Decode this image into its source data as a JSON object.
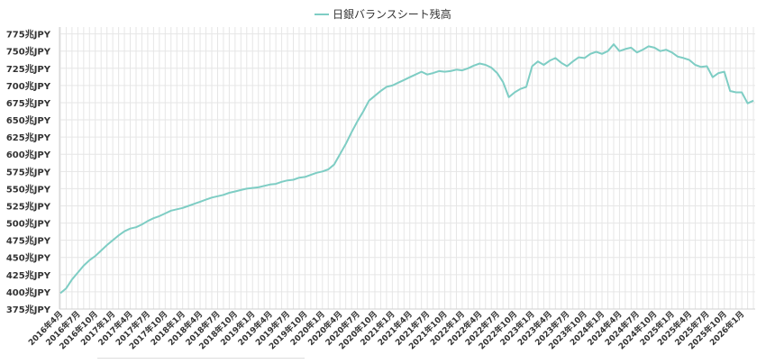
{
  "chart_data": {
    "type": "line",
    "title": "",
    "xlabel": "",
    "ylabel": "",
    "unit_suffix": "兆JPY",
    "ylim": [
      375,
      785
    ],
    "yticks": [
      375,
      400,
      425,
      450,
      475,
      500,
      525,
      550,
      575,
      600,
      625,
      650,
      675,
      700,
      725,
      750,
      775
    ],
    "ytick_labels": [
      "375兆JPY",
      "400兆JPY",
      "425兆JPY",
      "450兆JPY",
      "475兆JPY",
      "500兆JPY",
      "525兆JPY",
      "550兆JPY",
      "575兆JPY",
      "600兆JPY",
      "625兆JPY",
      "650兆JPY",
      "675兆JPY",
      "700兆JPY",
      "725兆JPY",
      "750兆JPY",
      "775兆JPY"
    ],
    "xlim": [
      "2016-04",
      "2026-03"
    ],
    "xtick_labels": [
      "2016年4月",
      "2016年7月",
      "2016年10月",
      "2017年1月",
      "2017年4月",
      "2017年7月",
      "2017年10月",
      "2018年1月",
      "2018年4月",
      "2018年7月",
      "2018年10月",
      "2019年1月",
      "2019年4月",
      "2019年7月",
      "2019年10月",
      "2020年1月",
      "2020年4月",
      "2020年7月",
      "2020年10月",
      "2021年1月",
      "2021年4月",
      "2021年7月",
      "2021年10月",
      "2022年1月",
      "2022年4月",
      "2022年7月",
      "2022年10月",
      "2023年1月",
      "2023年4月",
      "2023年7月",
      "2023年10月",
      "2024年1月",
      "2024年4月",
      "2024年7月",
      "2024年10月",
      "2025年1月",
      "2025年4月",
      "2025年7月",
      "2025年10月",
      "2026年1月"
    ],
    "grid": true,
    "legend_position": "top-center",
    "series": [
      {
        "name": "日銀バランスシート残高",
        "color": "#7ecdc4",
        "points": [
          [
            "2016-04",
            398
          ],
          [
            "2016-05",
            405
          ],
          [
            "2016-06",
            418
          ],
          [
            "2016-07",
            428
          ],
          [
            "2016-08",
            438
          ],
          [
            "2016-09",
            446
          ],
          [
            "2016-10",
            452
          ],
          [
            "2016-11",
            460
          ],
          [
            "2016-12",
            468
          ],
          [
            "2017-01",
            475
          ],
          [
            "2017-02",
            482
          ],
          [
            "2017-03",
            488
          ],
          [
            "2017-04",
            492
          ],
          [
            "2017-05",
            494
          ],
          [
            "2017-06",
            498
          ],
          [
            "2017-07",
            503
          ],
          [
            "2017-08",
            507
          ],
          [
            "2017-09",
            510
          ],
          [
            "2017-10",
            514
          ],
          [
            "2017-11",
            518
          ],
          [
            "2017-12",
            520
          ],
          [
            "2018-01",
            522
          ],
          [
            "2018-02",
            525
          ],
          [
            "2018-03",
            528
          ],
          [
            "2018-04",
            531
          ],
          [
            "2018-05",
            534
          ],
          [
            "2018-06",
            537
          ],
          [
            "2018-07",
            539
          ],
          [
            "2018-08",
            541
          ],
          [
            "2018-09",
            544
          ],
          [
            "2018-10",
            546
          ],
          [
            "2018-11",
            548
          ],
          [
            "2018-12",
            550
          ],
          [
            "2019-01",
            551
          ],
          [
            "2019-02",
            552
          ],
          [
            "2019-03",
            554
          ],
          [
            "2019-04",
            556
          ],
          [
            "2019-05",
            557
          ],
          [
            "2019-06",
            560
          ],
          [
            "2019-07",
            562
          ],
          [
            "2019-08",
            563
          ],
          [
            "2019-09",
            566
          ],
          [
            "2019-10",
            567
          ],
          [
            "2019-11",
            570
          ],
          [
            "2019-12",
            573
          ],
          [
            "2020-01",
            575
          ],
          [
            "2020-02",
            578
          ],
          [
            "2020-03",
            585
          ],
          [
            "2020-04",
            600
          ],
          [
            "2020-05",
            615
          ],
          [
            "2020-06",
            632
          ],
          [
            "2020-07",
            648
          ],
          [
            "2020-08",
            662
          ],
          [
            "2020-09",
            678
          ],
          [
            "2020-10",
            685
          ],
          [
            "2020-11",
            692
          ],
          [
            "2020-12",
            698
          ],
          [
            "2021-01",
            700
          ],
          [
            "2021-02",
            704
          ],
          [
            "2021-03",
            708
          ],
          [
            "2021-04",
            712
          ],
          [
            "2021-05",
            716
          ],
          [
            "2021-06",
            720
          ],
          [
            "2021-07",
            716
          ],
          [
            "2021-08",
            718
          ],
          [
            "2021-09",
            721
          ],
          [
            "2021-10",
            720
          ],
          [
            "2021-11",
            721
          ],
          [
            "2021-12",
            723
          ],
          [
            "2022-01",
            722
          ],
          [
            "2022-02",
            725
          ],
          [
            "2022-03",
            729
          ],
          [
            "2022-04",
            732
          ],
          [
            "2022-05",
            730
          ],
          [
            "2022-06",
            726
          ],
          [
            "2022-07",
            718
          ],
          [
            "2022-08",
            705
          ],
          [
            "2022-09",
            683
          ],
          [
            "2022-10",
            690
          ],
          [
            "2022-11",
            695
          ],
          [
            "2022-12",
            698
          ],
          [
            "2023-01",
            728
          ],
          [
            "2023-02",
            735
          ],
          [
            "2023-03",
            730
          ],
          [
            "2023-04",
            736
          ],
          [
            "2023-05",
            740
          ],
          [
            "2023-06",
            733
          ],
          [
            "2023-07",
            728
          ],
          [
            "2023-08",
            735
          ],
          [
            "2023-09",
            741
          ],
          [
            "2023-10",
            740
          ],
          [
            "2023-11",
            746
          ],
          [
            "2023-12",
            749
          ],
          [
            "2024-01",
            746
          ],
          [
            "2024-02",
            750
          ],
          [
            "2024-03",
            760
          ],
          [
            "2024-04",
            750
          ],
          [
            "2024-05",
            753
          ],
          [
            "2024-06",
            755
          ],
          [
            "2024-07",
            748
          ],
          [
            "2024-08",
            752
          ],
          [
            "2024-09",
            757
          ],
          [
            "2024-10",
            755
          ],
          [
            "2024-11",
            750
          ],
          [
            "2024-12",
            752
          ],
          [
            "2025-01",
            748
          ],
          [
            "2025-02",
            742
          ],
          [
            "2025-03",
            740
          ],
          [
            "2025-04",
            737
          ],
          [
            "2025-05",
            730
          ],
          [
            "2025-06",
            727
          ],
          [
            "2025-07",
            728
          ],
          [
            "2025-08",
            712
          ],
          [
            "2025-09",
            718
          ],
          [
            "2025-10",
            720
          ],
          [
            "2025-11",
            692
          ],
          [
            "2025-12",
            690
          ],
          [
            "2026-01",
            690
          ],
          [
            "2026-02",
            674
          ],
          [
            "2026-03",
            678
          ]
        ]
      }
    ]
  }
}
